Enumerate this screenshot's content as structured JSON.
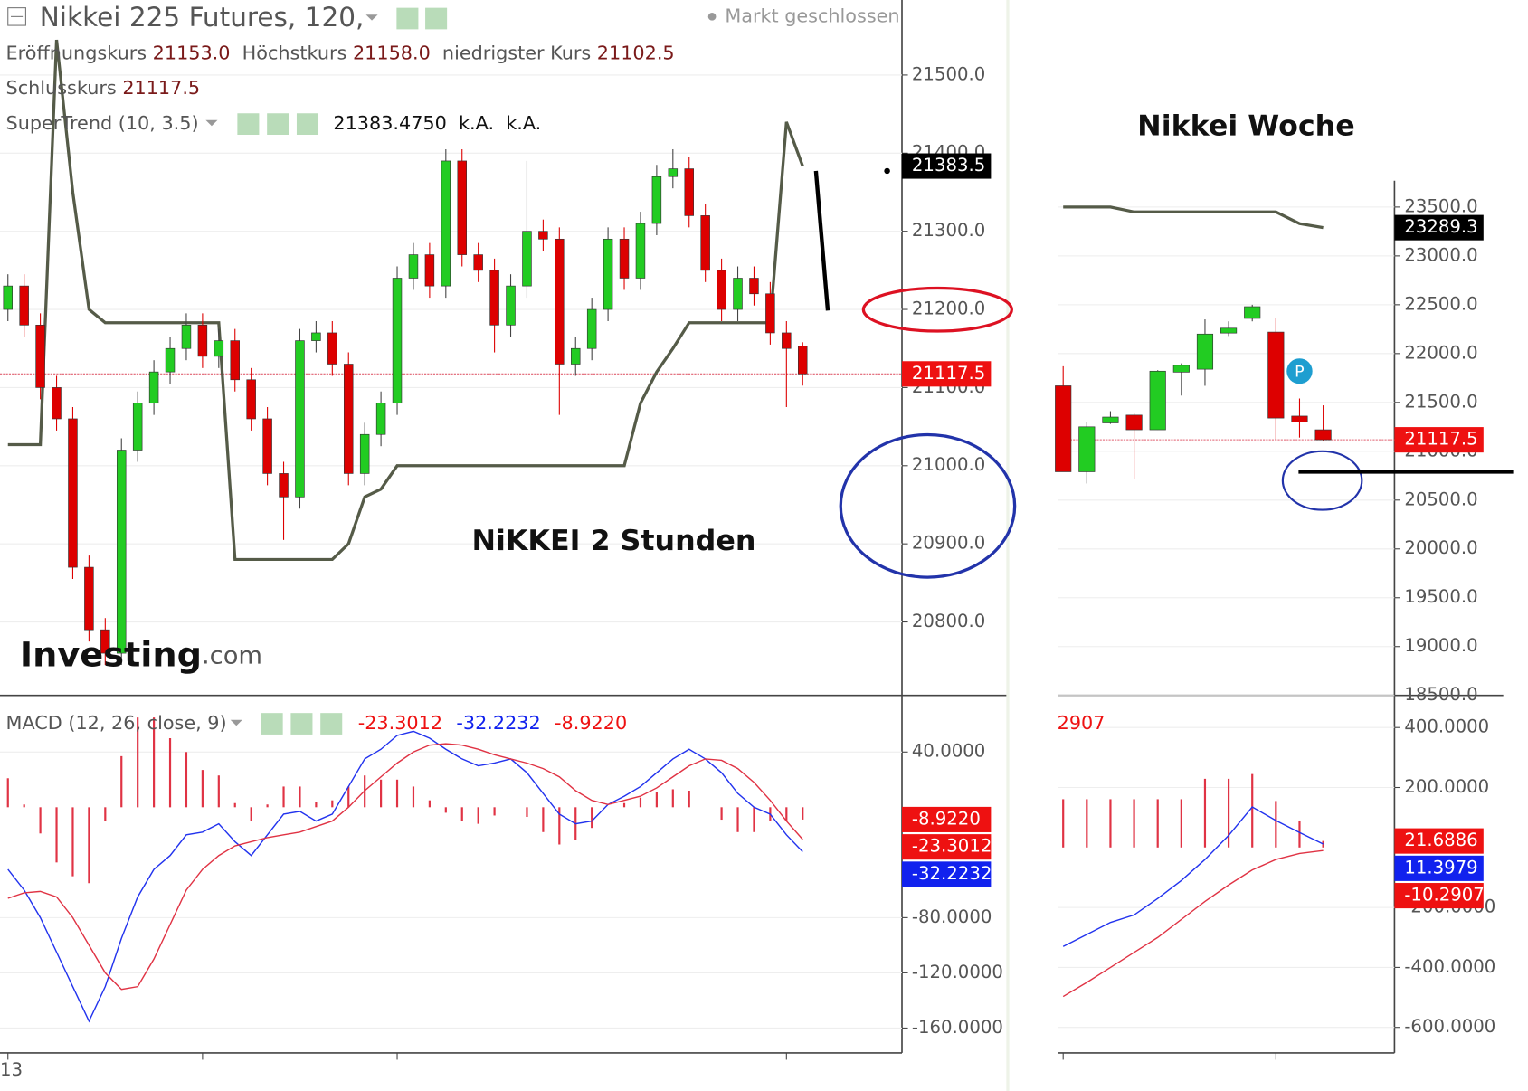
{
  "chart_data": [
    {
      "type": "candlestick",
      "title": "Nikkei 225 Futures, 120,",
      "status": "Markt geschlossen",
      "legend_rows": [
        [
          "Eröffnungskurs",
          "21153.0",
          "Höchstkurs",
          "21158.0",
          "niedrigster Kurs",
          "21102.5"
        ],
        [
          "Schlusskurs",
          "21117.5"
        ]
      ],
      "indicator": {
        "label": "SuperTrend (10, 3.5)",
        "readouts": [
          "21383.4750",
          "k.A.",
          "k.A."
        ]
      },
      "annotation": "NiKKEI 2 Stunden",
      "watermark": {
        "brand": "Investing",
        "suffix": ".com"
      },
      "up_color": "#22cc22",
      "down_color": "#dd0000",
      "open": [
        21200,
        21230,
        21180,
        21100,
        21060,
        20870,
        20790,
        20760,
        21020,
        21080,
        21120,
        21150,
        21180,
        21140,
        21160,
        21110,
        21060,
        20990,
        20960,
        21160,
        21170,
        21130,
        20990,
        21040,
        21080,
        21240,
        21270,
        21230,
        21390,
        21270,
        21250,
        21180,
        21230,
        21300,
        21290,
        21130,
        21150,
        21200,
        21290,
        21240,
        21310,
        21370,
        21380,
        21320,
        21250,
        21200,
        21240,
        21220,
        21170,
        21153
      ],
      "high": [
        21245,
        21245,
        21195,
        21115,
        21075,
        20885,
        20805,
        21035,
        21095,
        21135,
        21165,
        21195,
        21195,
        21175,
        21175,
        21125,
        21075,
        21005,
        21175,
        21185,
        21185,
        21145,
        21055,
        21095,
        21255,
        21285,
        21285,
        21405,
        21405,
        21285,
        21265,
        21245,
        21390,
        21315,
        21305,
        21165,
        21215,
        21305,
        21305,
        21325,
        21385,
        21405,
        21395,
        21335,
        21265,
        21255,
        21255,
        21235,
        21185,
        21158
      ],
      "low": [
        21185,
        21165,
        21085,
        21045,
        20855,
        20775,
        20745,
        20745,
        21005,
        21065,
        21105,
        21135,
        21125,
        21125,
        21095,
        21045,
        20975,
        20905,
        20945,
        21145,
        21115,
        20975,
        20975,
        21025,
        21065,
        21225,
        21215,
        21215,
        21255,
        21235,
        21145,
        21165,
        21215,
        21275,
        21065,
        21115,
        21135,
        21185,
        21225,
        21225,
        21295,
        21355,
        21305,
        21235,
        21185,
        21185,
        21205,
        21155,
        21075,
        21102.5
      ],
      "close": [
        21230,
        21180,
        21100,
        21060,
        20870,
        20790,
        20760,
        21020,
        21080,
        21120,
        21150,
        21180,
        21140,
        21160,
        21110,
        21060,
        20990,
        20960,
        21160,
        21170,
        21130,
        20990,
        21040,
        21080,
        21240,
        21270,
        21230,
        21390,
        21270,
        21250,
        21180,
        21230,
        21300,
        21290,
        21130,
        21150,
        21200,
        21290,
        21240,
        21310,
        21370,
        21380,
        21320,
        21250,
        21200,
        21240,
        21220,
        21170,
        21150,
        21117.5
      ],
      "supertrend": {
        "color": "#555b48",
        "values": [
          21027,
          21027,
          21027,
          21545,
          21350,
          21200,
          21183,
          21183,
          21183,
          21183,
          21183,
          21183,
          21183,
          21183,
          20880,
          20880,
          20880,
          20880,
          20880,
          20880,
          20880,
          20900,
          20960,
          20970,
          21000,
          21000,
          21000,
          21000,
          21000,
          21000,
          21000,
          21000,
          21000,
          21000,
          21000,
          21000,
          21000,
          21000,
          21000,
          21080,
          21120,
          21150,
          21183,
          21183,
          21183,
          21183,
          21183,
          21183,
          21440,
          21383.475
        ]
      },
      "price_line": {
        "value": 21117.5,
        "color": "#e06070"
      },
      "tags": [
        {
          "value": 21383.5,
          "label": "21383.5",
          "color": "#000000"
        },
        {
          "value": 21117.5,
          "label": "21117.5",
          "color": "#ee1111"
        }
      ],
      "ylim": [
        20706,
        21596
      ],
      "yticks": [
        {
          "value": 20800,
          "label": "20800.0"
        },
        {
          "value": 20900,
          "label": "20900.0"
        },
        {
          "value": 21000,
          "label": "21000.0"
        },
        {
          "value": 21100,
          "label": "21100.0"
        },
        {
          "value": 21200,
          "label": "21200.0"
        },
        {
          "value": 21300,
          "label": "21300.0"
        },
        {
          "value": 21400,
          "label": "21400.0"
        },
        {
          "value": 21500,
          "label": "21500.0"
        }
      ],
      "grid": true
    },
    {
      "type": "macd",
      "label": "MACD (12, 26, close, 9)",
      "series": [
        {
          "color": "#2233ee",
          "values": [
            -45,
            -60,
            -80,
            -105,
            -130,
            -155,
            -130,
            -95,
            -65,
            -45,
            -35,
            -20,
            -18,
            -12,
            -25,
            -35,
            -20,
            -5,
            -3,
            -10,
            -5,
            15,
            35,
            42,
            52,
            55,
            50,
            42,
            35,
            30,
            32,
            35,
            25,
            10,
            -5,
            -12,
            -10,
            2,
            8,
            15,
            25,
            35,
            42,
            35,
            25,
            10,
            0,
            -5,
            -20,
            -32.2232
          ]
        },
        {
          "color": "#e03344",
          "values": [
            -66,
            -62,
            -61,
            -65,
            -80,
            -100,
            -120,
            -132,
            -130,
            -110,
            -85,
            -60,
            -45,
            -35,
            -28,
            -25,
            -22,
            -20,
            -18,
            -14,
            -10,
            0,
            12,
            22,
            32,
            40,
            45,
            46,
            45,
            42,
            38,
            35,
            32,
            28,
            22,
            12,
            5,
            2,
            5,
            8,
            14,
            22,
            30,
            35,
            34,
            28,
            18,
            5,
            -10,
            -23.3012
          ]
        }
      ],
      "histogram": {
        "color": "#e03344",
        "values": [
          21,
          2,
          -19,
          -40,
          -50,
          -55,
          -10,
          37,
          65,
          65,
          50,
          40,
          27,
          23,
          3,
          -10,
          2,
          15,
          15,
          4,
          5,
          15,
          23,
          20,
          20,
          15,
          5,
          -4,
          -10,
          -12,
          -6,
          0,
          -7,
          -18,
          -27,
          -24,
          -15,
          0,
          3,
          7,
          11,
          13,
          12,
          0,
          -9,
          -18,
          -18,
          -10,
          -10,
          -8.922
        ]
      },
      "tags": [
        {
          "value": -8.922,
          "label": "-8.9220",
          "color": "#ee1111"
        },
        {
          "value": -23.3012,
          "label": "-23.3012",
          "color": "#ee1111"
        },
        {
          "value": -32.2232,
          "label": "-32.2232",
          "color": "#1122ee"
        }
      ],
      "categories": [
        "13",
        null,
        null,
        null,
        null,
        null,
        null,
        null,
        null,
        null,
        null,
        null,
        null,
        null,
        null,
        null,
        null,
        null,
        null,
        null,
        null,
        null,
        null,
        null,
        null,
        null,
        null,
        null,
        null,
        null,
        null,
        null,
        null,
        null,
        null,
        null,
        null,
        null,
        null,
        null,
        null,
        null,
        null,
        null,
        null,
        null,
        null,
        null,
        null,
        null
      ],
      "xticks": [
        12,
        24,
        48
      ],
      "ylim": [
        -178,
        81
      ],
      "yticks": [
        {
          "value": 40,
          "label": "40.0000"
        },
        {
          "value": -80,
          "label": "-80.0000"
        },
        {
          "value": -120,
          "label": "-120.0000"
        },
        {
          "value": -160,
          "label": "-160.0000"
        }
      ],
      "grid": true
    },
    {
      "type": "candlestick",
      "annotation": "Nikkei Woche",
      "up_color": "#22cc22",
      "down_color": "#dd0000",
      "open": [
        21670,
        20790,
        21290,
        21370,
        21220,
        21810,
        21840,
        22210,
        22360,
        22220,
        21360,
        21220
      ],
      "high": [
        21870,
        21300,
        21410,
        21390,
        21830,
        21900,
        22350,
        22330,
        22500,
        22360,
        21540,
        21470
      ],
      "low": [
        20790,
        20670,
        21280,
        20720,
        21220,
        21570,
        21670,
        22180,
        22330,
        21120,
        21140,
        21110
      ],
      "close": [
        20790,
        21250,
        21350,
        21220,
        21820,
        21880,
        22200,
        22260,
        22480,
        21340,
        21300,
        21117.5
      ],
      "supertrend": {
        "color": "#555b48",
        "values": [
          23500,
          23500,
          23500,
          23450,
          23450,
          23450,
          23450,
          23450,
          23450,
          23450,
          23330,
          23289.3
        ]
      },
      "price_line": {
        "value": 21117.5,
        "color": "#e06070"
      },
      "marker": {
        "label": "P",
        "index": 10,
        "value": 21820,
        "color": "#1e9ed0"
      },
      "tags": [
        {
          "value": 23289.3,
          "label": "23289.3",
          "color": "#000000"
        },
        {
          "value": 21117.5,
          "label": "21117.5",
          "color": "#ee1111"
        }
      ],
      "ylim": [
        18500,
        23770
      ],
      "yticks": [
        {
          "value": 18500,
          "label": "18500.0"
        },
        {
          "value": 19000,
          "label": "19000.0"
        },
        {
          "value": 19500,
          "label": "19500.0"
        },
        {
          "value": 20000,
          "label": "20000.0"
        },
        {
          "value": 20500,
          "label": "20500.0"
        },
        {
          "value": 21000,
          "label": "21000.0"
        },
        {
          "value": 21500,
          "label": "21500.0"
        },
        {
          "value": 22000,
          "label": "22000.0"
        },
        {
          "value": 22500,
          "label": "22500.0"
        },
        {
          "value": 23000,
          "label": "23000.0"
        },
        {
          "value": 23500,
          "label": "23500.0"
        }
      ],
      "grid": true
    },
    {
      "type": "macd",
      "label": "2907",
      "series": [
        {
          "color": "#2233ee",
          "values": [
            -330,
            -290,
            -250,
            -225,
            -170,
            -110,
            -40,
            40,
            135,
            90,
            50,
            11.3979
          ]
        },
        {
          "color": "#e03344",
          "values": [
            -497,
            -450,
            -400,
            -350,
            -300,
            -240,
            -180,
            -125,
            -75,
            -40,
            -20,
            -10.2907
          ]
        }
      ],
      "histogram": {
        "color": "#e03344",
        "values": [
          161,
          161,
          161,
          161,
          161,
          161,
          229,
          229,
          245,
          155,
          90,
          21.6886
        ]
      },
      "tags": [
        {
          "value": 21.6886,
          "label": "21.6886",
          "color": "#ee1111"
        },
        {
          "value": 11.3979,
          "label": "11.3979",
          "color": "#1122ee"
        },
        {
          "value": -10.2907,
          "label": "-10.2907",
          "color": "#ee1111"
        }
      ],
      "xticks": [
        0,
        9
      ],
      "ylim": [
        -685,
        507
      ],
      "yticks": [
        {
          "value": 400,
          "label": "400.0000"
        },
        {
          "value": 200,
          "label": "200.0000"
        },
        {
          "value": -200,
          "label": "-200.0000"
        },
        {
          "value": -400,
          "label": "-400.0000"
        },
        {
          "value": -600,
          "label": "-600.0000"
        }
      ],
      "grid": true
    }
  ]
}
